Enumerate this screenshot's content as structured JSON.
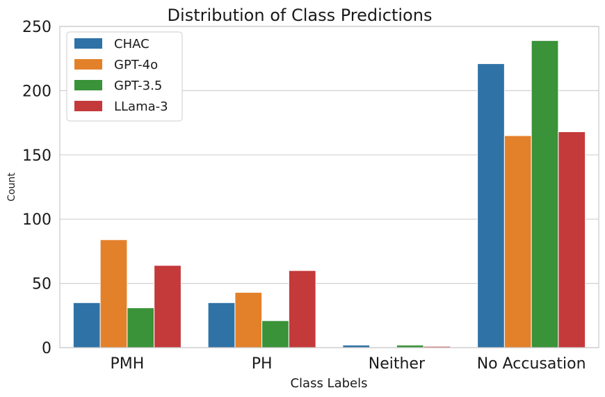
{
  "chart_data": {
    "type": "bar",
    "title": "Distribution of Class Predictions",
    "xlabel": "Class Labels",
    "ylabel": "Count",
    "categories": [
      "PMH",
      "PH",
      "Neither",
      "No Accusation"
    ],
    "ylim": [
      0,
      250
    ],
    "yticks": [
      0,
      50,
      100,
      150,
      200,
      250
    ],
    "grid": true,
    "legend_position": "top-left",
    "series": [
      {
        "name": "CHAC",
        "color": "#2f72a6",
        "values": [
          35,
          35,
          2,
          221
        ]
      },
      {
        "name": "GPT-4o",
        "color": "#e3812a",
        "values": [
          84,
          43,
          0,
          165
        ]
      },
      {
        "name": "GPT-3.5",
        "color": "#3a9239",
        "values": [
          31,
          21,
          2,
          239
        ]
      },
      {
        "name": "LLama-3",
        "color": "#c4393a",
        "values": [
          64,
          60,
          1,
          168
        ]
      }
    ]
  }
}
